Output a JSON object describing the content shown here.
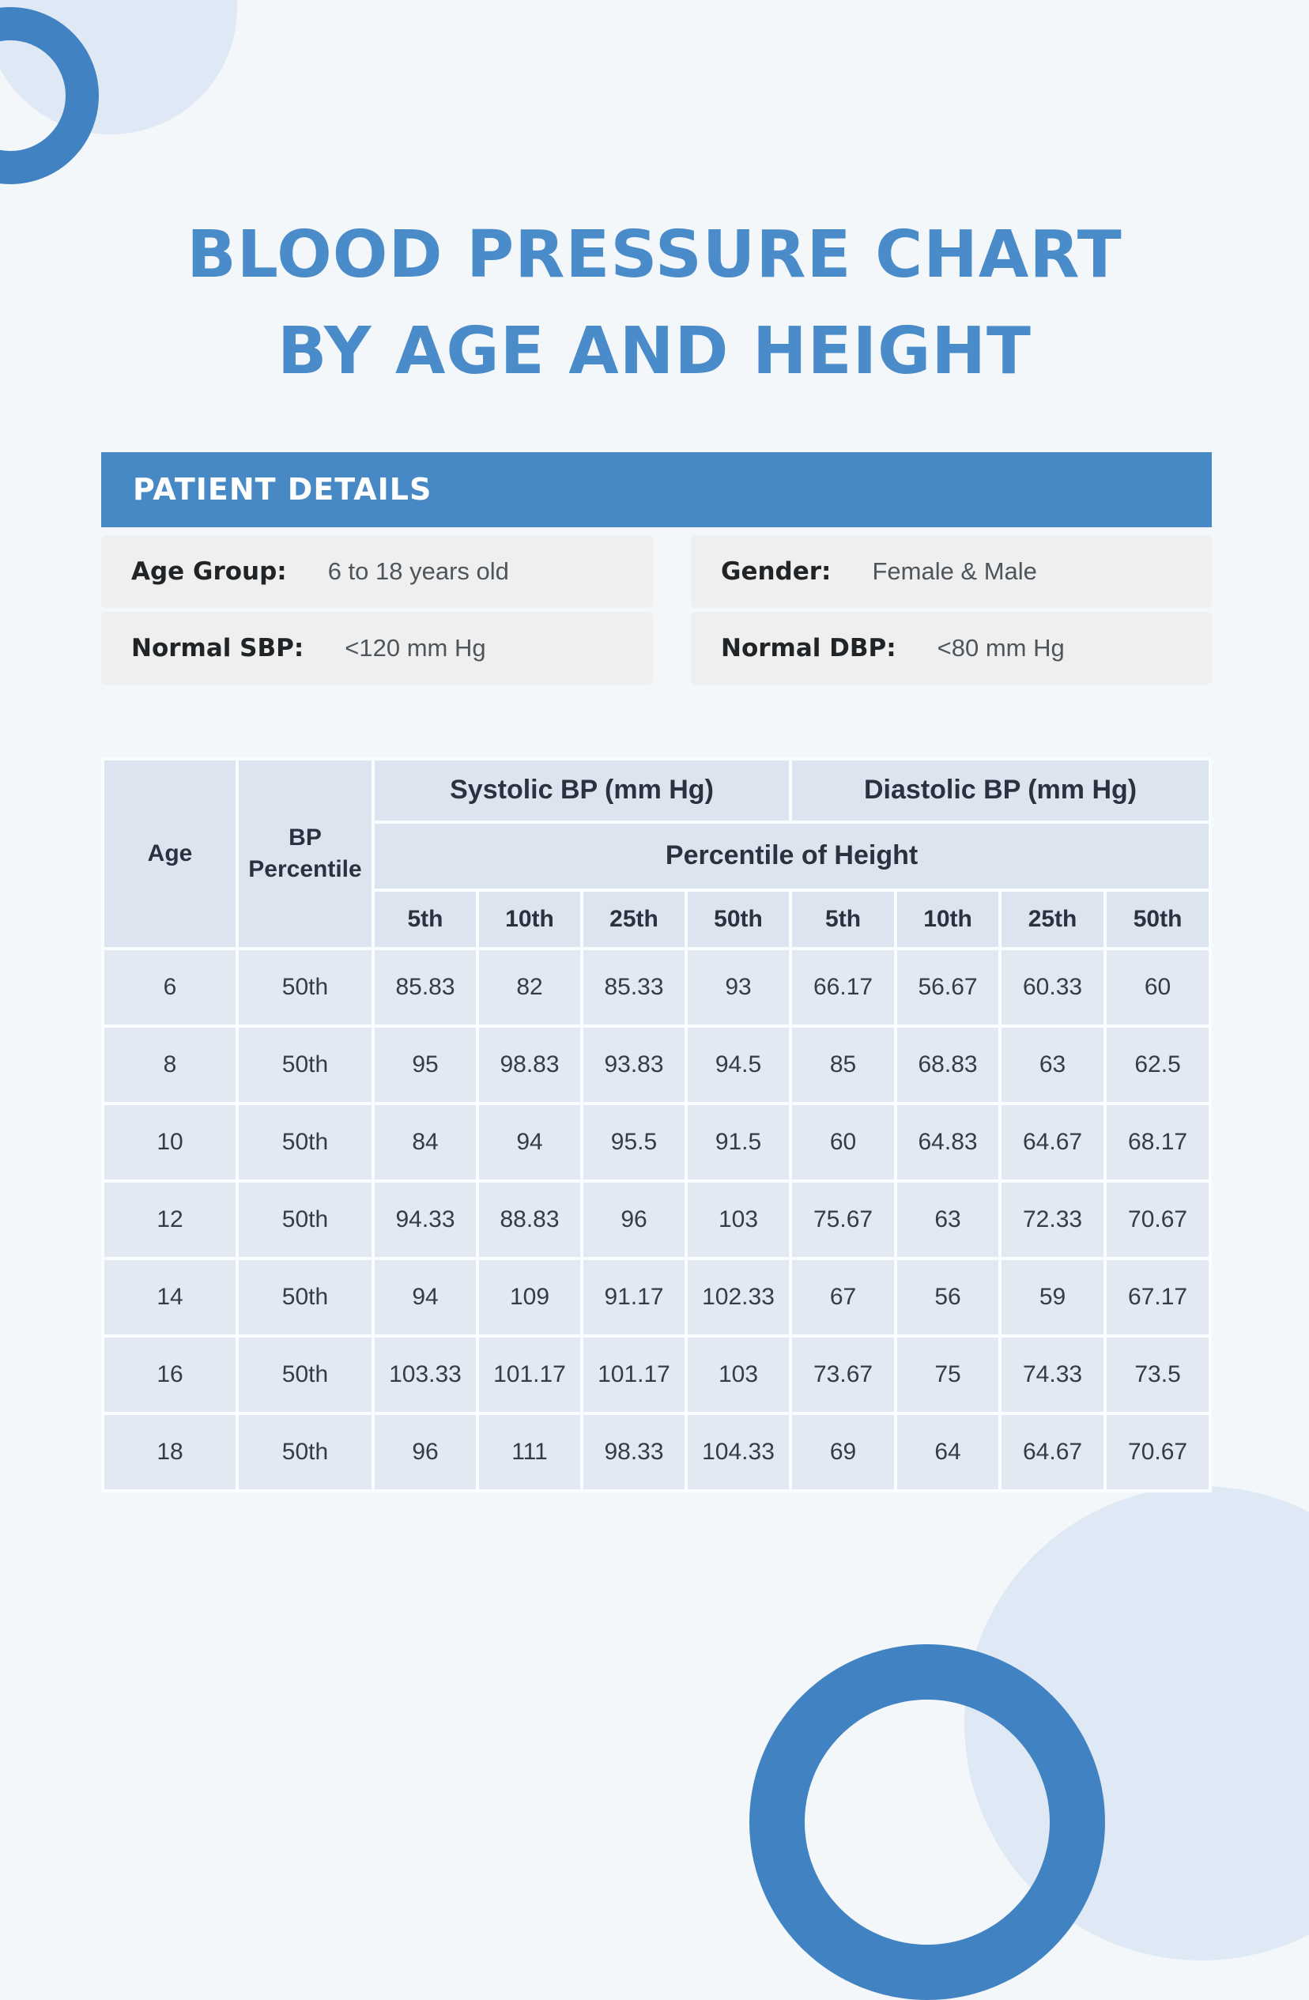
{
  "colors": {
    "title_blue": "#4a8cc9",
    "bar_blue": "#4689c5",
    "ring_blue": "#4182c2",
    "pale_circle_blue": "#dfe8f5",
    "page_background": "#f3f7fa",
    "detail_box_gray": "#efefef",
    "table_header_cell": "#dce4f0",
    "table_body_cell": "#e2e9f3"
  },
  "title": {
    "line1": "BLOOD PRESSURE CHART",
    "line2": "BY AGE AND HEIGHT"
  },
  "patient_details": {
    "header": "PATIENT DETAILS",
    "fields": [
      {
        "label": "Age Group:",
        "value": "6 to 18 years old"
      },
      {
        "label": "Gender:",
        "value": "Female & Male"
      },
      {
        "label": "Normal SBP:",
        "value": "<120 mm Hg"
      },
      {
        "label": "Normal DBP:",
        "value": "<80 mm Hg"
      }
    ]
  },
  "chart_data": {
    "type": "table",
    "title": "Blood Pressure Chart by Age and Height",
    "header": {
      "age": "Age",
      "bp_percentile": "BP Percentile",
      "systolic_group": "Systolic BP (mm Hg)",
      "diastolic_group": "Diastolic BP (mm Hg)",
      "percentile_of_height": "Percentile of Height",
      "sub_columns": [
        "5th",
        "10th",
        "25th",
        "50th",
        "5th",
        "10th",
        "25th",
        "50th"
      ]
    },
    "rows": [
      {
        "age": "6",
        "bp_percentile": "50th",
        "values": [
          "85.83",
          "82",
          "85.33",
          "93",
          "66.17",
          "56.67",
          "60.33",
          "60"
        ]
      },
      {
        "age": "8",
        "bp_percentile": "50th",
        "values": [
          "95",
          "98.83",
          "93.83",
          "94.5",
          "85",
          "68.83",
          "63",
          "62.5"
        ]
      },
      {
        "age": "10",
        "bp_percentile": "50th",
        "values": [
          "84",
          "94",
          "95.5",
          "91.5",
          "60",
          "64.83",
          "64.67",
          "68.17"
        ]
      },
      {
        "age": "12",
        "bp_percentile": "50th",
        "values": [
          "94.33",
          "88.83",
          "96",
          "103",
          "75.67",
          "63",
          "72.33",
          "70.67"
        ]
      },
      {
        "age": "14",
        "bp_percentile": "50th",
        "values": [
          "94",
          "109",
          "91.17",
          "102.33",
          "67",
          "56",
          "59",
          "67.17"
        ]
      },
      {
        "age": "16",
        "bp_percentile": "50th",
        "values": [
          "103.33",
          "101.17",
          "101.17",
          "103",
          "73.67",
          "75",
          "74.33",
          "73.5"
        ]
      },
      {
        "age": "18",
        "bp_percentile": "50th",
        "values": [
          "96",
          "111",
          "98.33",
          "104.33",
          "69",
          "64",
          "64.67",
          "70.67"
        ]
      }
    ]
  }
}
